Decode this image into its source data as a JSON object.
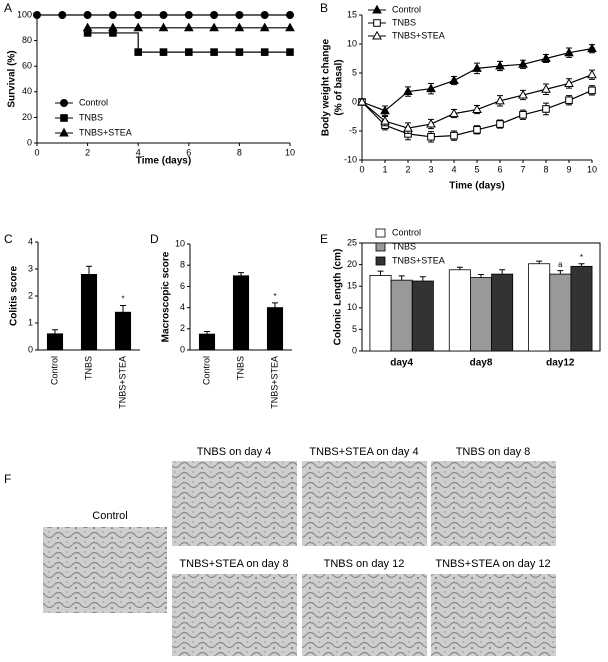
{
  "chart_data": [
    {
      "type": "line",
      "panel_label": "A",
      "step": true,
      "xlabel": "Time (days)",
      "ylabel": "Survival (%)",
      "x": [
        0,
        1,
        2,
        3,
        4,
        5,
        6,
        7,
        8,
        9,
        10
      ],
      "series": [
        {
          "name": "Control",
          "marker": "circle",
          "filled": true,
          "color": "#000000",
          "values": [
            100,
            100,
            100,
            100,
            100,
            100,
            100,
            100,
            100,
            100,
            100
          ]
        },
        {
          "name": "TNBS",
          "marker": "square",
          "filled": true,
          "color": "#000000",
          "values": [
            null,
            null,
            86,
            86,
            71,
            71,
            71,
            71,
            71,
            71,
            71
          ]
        },
        {
          "name": "TNBS+STEA",
          "marker": "triangle",
          "filled": true,
          "color": "#000000",
          "values": [
            null,
            null,
            90,
            90,
            90,
            90,
            90,
            90,
            90,
            90,
            90
          ]
        }
      ],
      "xlim": [
        0,
        10
      ],
      "xticks": [
        0,
        2,
        4,
        6,
        8,
        10
      ],
      "ylim": [
        0,
        100
      ],
      "yticks": [
        0,
        20,
        40,
        60,
        80,
        100
      ],
      "legend": "lower left"
    },
    {
      "type": "line",
      "panel_label": "B",
      "xlabel": "Time (days)",
      "ylabel": [
        "Body weight change",
        "(% of basal)"
      ],
      "x": [
        0,
        1,
        2,
        3,
        4,
        5,
        6,
        7,
        8,
        9,
        10
      ],
      "series": [
        {
          "name": "Control",
          "marker": "triangle",
          "filled": true,
          "color": "#000000",
          "values": [
            0,
            -1.5,
            1.8,
            2.3,
            3.7,
            5.8,
            6.2,
            6.5,
            7.5,
            8.5,
            9.2
          ],
          "errors": [
            0.5,
            0.8,
            0.8,
            0.9,
            0.7,
            0.9,
            0.8,
            0.7,
            0.7,
            0.8,
            0.7
          ]
        },
        {
          "name": "TNBS",
          "marker": "square",
          "filled": false,
          "color": "#000000",
          "values": [
            0,
            -4,
            -5.5,
            -6,
            -5.8,
            -4.8,
            -3.8,
            -2.2,
            -1.2,
            0.3,
            2
          ],
          "errors": [
            0.5,
            0.8,
            1,
            0.9,
            0.8,
            0.7,
            0.7,
            0.8,
            1,
            0.8,
            0.8
          ]
        },
        {
          "name": "TNBS+STEA",
          "marker": "triangle",
          "filled": false,
          "color": "#000000",
          "values": [
            0,
            -3.3,
            -4.5,
            -3.8,
            -2,
            -1.3,
            0.2,
            1.2,
            2.2,
            3.2,
            4.7
          ],
          "errors": [
            0.5,
            0.8,
            0.9,
            0.8,
            0.7,
            0.7,
            0.9,
            0.8,
            0.9,
            0.8,
            0.8
          ]
        }
      ],
      "xlim": [
        0,
        10
      ],
      "xticks": [
        0,
        1,
        2,
        3,
        4,
        5,
        6,
        7,
        8,
        9,
        10
      ],
      "ylim": [
        -10,
        15
      ],
      "yticks": [
        -10,
        -5,
        0,
        5,
        10,
        15
      ],
      "legend": "upper left"
    },
    {
      "type": "bar",
      "panel_label": "C",
      "ylabel": "Colitis score",
      "categories": [
        "Control",
        "TNBS",
        "TNBS+STEA"
      ],
      "values": [
        0.6,
        2.8,
        1.4
      ],
      "errors": [
        0.15,
        0.3,
        0.25
      ],
      "annotations": [
        null,
        null,
        "*"
      ],
      "color": "#000000",
      "ylim": [
        0,
        4
      ],
      "yticks": [
        0,
        1,
        2,
        3,
        4
      ]
    },
    {
      "type": "bar",
      "panel_label": "D",
      "ylabel": "Macroscopic score",
      "categories": [
        "Control",
        "TNBS",
        "TNBS+STEA"
      ],
      "values": [
        1.5,
        7,
        4
      ],
      "errors": [
        0.25,
        0.3,
        0.45
      ],
      "annotations": [
        null,
        null,
        "*"
      ],
      "color": "#000000",
      "ylim": [
        0,
        10
      ],
      "yticks": [
        0,
        2,
        4,
        6,
        8,
        10
      ]
    },
    {
      "type": "bar",
      "panel_label": "E",
      "ylabel": "Colonic Length (cm)",
      "categories": [
        "day4",
        "day8",
        "day12"
      ],
      "series": [
        {
          "name": "Control",
          "color": "#ffffff",
          "values": [
            17.5,
            18.8,
            20.2
          ],
          "errors": [
            1,
            0.6,
            0.6
          ],
          "annotations": [
            null,
            null,
            null
          ]
        },
        {
          "name": "TNBS",
          "color": "#999999",
          "values": [
            16.4,
            17,
            17.8
          ],
          "errors": [
            1,
            0.7,
            0.8
          ],
          "annotations": [
            null,
            null,
            "a"
          ]
        },
        {
          "name": "TNBS+STEA",
          "color": "#333333",
          "values": [
            16.2,
            17.8,
            19.6
          ],
          "errors": [
            1,
            1,
            0.6
          ],
          "annotations": [
            null,
            null,
            "*"
          ]
        }
      ],
      "ylim": [
        0,
        25
      ],
      "yticks": [
        0,
        5,
        10,
        15,
        20,
        25
      ],
      "legend": "upper left"
    }
  ],
  "panel_f": {
    "label": "F",
    "images": [
      {
        "caption": "Control"
      },
      {
        "caption": "TNBS on day 4"
      },
      {
        "caption": "TNBS+STEA on day 4"
      },
      {
        "caption": "TNBS on day 8"
      },
      {
        "caption": "TNBS+STEA on day 8"
      },
      {
        "caption": "TNBS on day 12"
      },
      {
        "caption": "TNBS+STEA on day 12"
      }
    ]
  }
}
